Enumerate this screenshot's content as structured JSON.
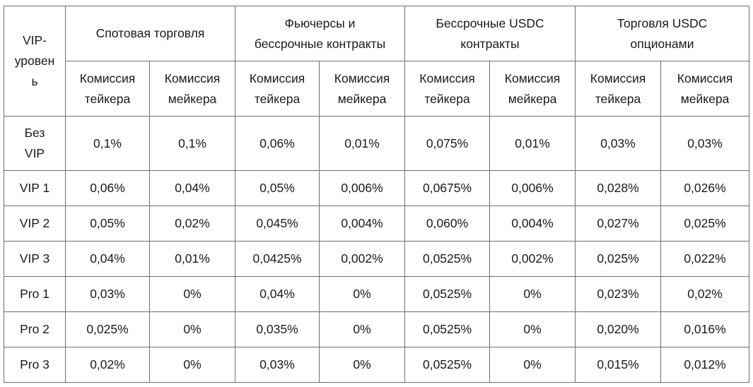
{
  "table": {
    "vip_header_lines": [
      "VIP-",
      "уровен",
      "ь"
    ],
    "groups": [
      {
        "lines": [
          "Спотовая торговля"
        ]
      },
      {
        "lines": [
          "Фьючерсы и",
          "бессрочные контракты"
        ]
      },
      {
        "lines": [
          "Бессрочные USDC",
          "контракты"
        ]
      },
      {
        "lines": [
          "Торговля USDC",
          "опционами"
        ]
      }
    ],
    "subheaders": [
      {
        "lines": [
          "Комиссия",
          "тейкера"
        ]
      },
      {
        "lines": [
          "Комиссия",
          "мейкера"
        ]
      },
      {
        "lines": [
          "Комиссия",
          "тейкера"
        ]
      },
      {
        "lines": [
          "Комиссия",
          "мейкера"
        ]
      },
      {
        "lines": [
          "Комиссия",
          "тейкера"
        ]
      },
      {
        "lines": [
          "Комиссия",
          "мейкера"
        ]
      },
      {
        "lines": [
          "Комиссия",
          "тейкера"
        ]
      },
      {
        "lines": [
          "Комиссия",
          "мейкера"
        ]
      }
    ],
    "rows": [
      {
        "level_lines": [
          "Без",
          "VIP"
        ],
        "cells": [
          "0,1%",
          "0,1%",
          "0,06%",
          "0,01%",
          "0,075%",
          "0,01%",
          "0,03%",
          "0,03%"
        ]
      },
      {
        "level_lines": [
          "VIP 1"
        ],
        "cells": [
          "0,06%",
          "0,04%",
          "0,05%",
          "0,006%",
          "0,0675%",
          "0,006%",
          "0,028%",
          "0,026%"
        ]
      },
      {
        "level_lines": [
          "VIP 2"
        ],
        "cells": [
          "0,05%",
          "0,02%",
          "0,045%",
          "0,004%",
          "0,060%",
          "0,004%",
          "0,027%",
          "0,025%"
        ]
      },
      {
        "level_lines": [
          "VIP 3"
        ],
        "cells": [
          "0,04%",
          "0,01%",
          "0,0425%",
          "0,002%",
          "0,0525%",
          "0,002%",
          "0,025%",
          "0,022%"
        ]
      },
      {
        "level_lines": [
          "Pro 1"
        ],
        "cells": [
          "0,03%",
          "0%",
          "0,04%",
          "0%",
          "0,0525%",
          "0%",
          "0,023%",
          "0,02%"
        ]
      },
      {
        "level_lines": [
          "Pro 2"
        ],
        "cells": [
          "0,025%",
          "0%",
          "0,035%",
          "0%",
          "0,0525%",
          "0%",
          "0,020%",
          "0,016%"
        ]
      },
      {
        "level_lines": [
          "Pro 3"
        ],
        "cells": [
          "0,02%",
          "0%",
          "0,03%",
          "0%",
          "0,0525%",
          "0%",
          "0,015%",
          "0,012%"
        ]
      }
    ]
  }
}
